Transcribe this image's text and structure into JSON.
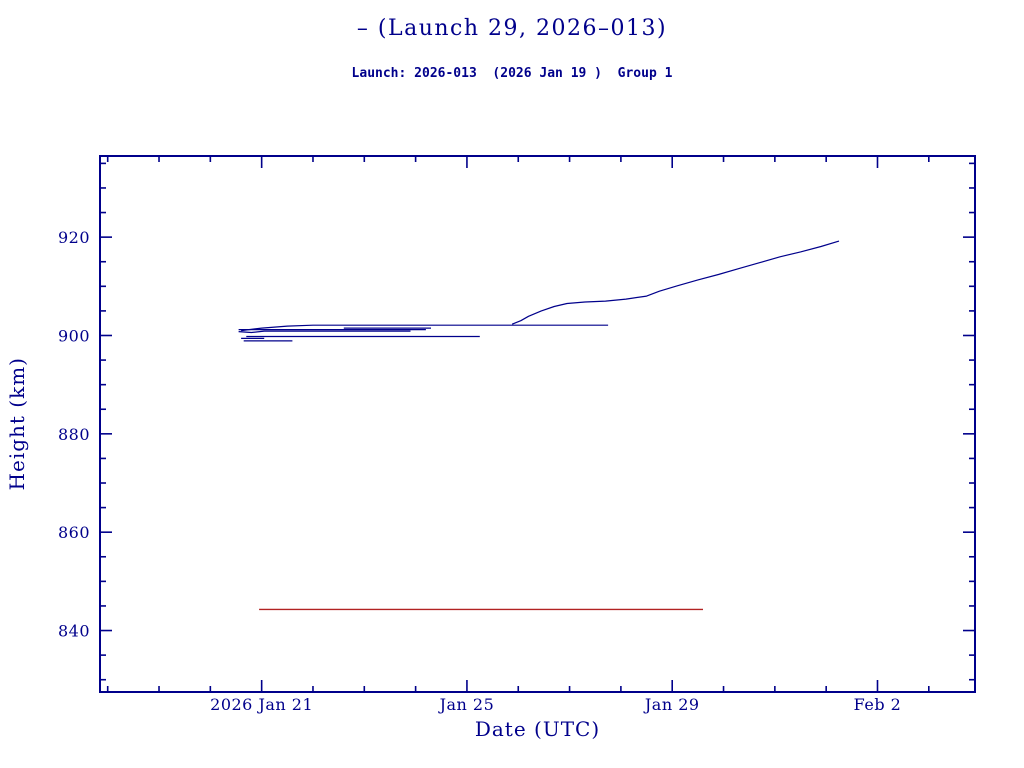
{
  "colors": {
    "axis": "#00008b",
    "text": "#00008b",
    "series_blue": "#00008b",
    "series_red": "#b22222",
    "background": "#ffffff"
  },
  "chart_data": {
    "type": "line",
    "title": "– (Launch 29, 2026–013)",
    "subtitle": "Launch: 2026-013  (2026 Jan 19 )  Group 1",
    "xlabel": "Date (UTC)",
    "ylabel": "Height (km)",
    "x_unit": "day of 2026 (Jan 21 = 21, Feb 2 = 33)",
    "xlim": [
      17.85,
      34.9
    ],
    "ylim": [
      827.5,
      936.5
    ],
    "grid": false,
    "legend": "none",
    "x_major_ticks": [
      {
        "value": 21,
        "label": "2026 Jan 21"
      },
      {
        "value": 25,
        "label": "Jan 25"
      },
      {
        "value": 29,
        "label": "Jan 29"
      },
      {
        "value": 33,
        "label": "Feb 2"
      }
    ],
    "x_minor_step": 1,
    "y_major_ticks": [
      {
        "value": 840,
        "label": "840"
      },
      {
        "value": 860,
        "label": "860"
      },
      {
        "value": 880,
        "label": "880"
      },
      {
        "value": 900,
        "label": "900"
      },
      {
        "value": 920,
        "label": "920"
      }
    ],
    "y_minor_step": 5,
    "series": [
      {
        "name": "object-trace-1",
        "color": "#00008b",
        "width": 1.2,
        "points": [
          [
            20.55,
            901.2
          ],
          [
            24.2,
            901.2
          ]
        ]
      },
      {
        "name": "object-trace-2",
        "color": "#00008b",
        "width": 1.2,
        "points": [
          [
            20.55,
            900.8
          ],
          [
            20.8,
            900.6
          ],
          [
            21.05,
            900.9
          ],
          [
            23.9,
            900.9
          ]
        ]
      },
      {
        "name": "object-trace-3",
        "color": "#00008b",
        "width": 1.2,
        "points": [
          [
            20.6,
            899.4
          ],
          [
            21.05,
            899.4
          ]
        ]
      },
      {
        "name": "object-trace-4",
        "color": "#00008b",
        "width": 1.2,
        "points": [
          [
            20.65,
            898.9
          ],
          [
            21.6,
            898.9
          ]
        ]
      },
      {
        "name": "object-trace-5",
        "color": "#00008b",
        "width": 1.2,
        "points": [
          [
            20.7,
            899.8
          ],
          [
            25.25,
            899.8
          ]
        ]
      },
      {
        "name": "object-trace-6",
        "color": "#00008b",
        "width": 1.2,
        "points": [
          [
            20.6,
            901.0
          ],
          [
            21.0,
            901.5
          ],
          [
            21.5,
            901.9
          ],
          [
            22.0,
            902.1
          ],
          [
            27.75,
            902.1
          ]
        ]
      },
      {
        "name": "object-trace-7",
        "color": "#00008b",
        "width": 1.2,
        "points": [
          [
            22.6,
            901.5
          ],
          [
            24.3,
            901.5
          ]
        ]
      },
      {
        "name": "object-trace-raising",
        "color": "#00008b",
        "width": 1.2,
        "points": [
          [
            25.88,
            902.3
          ],
          [
            26.05,
            903.0
          ],
          [
            26.2,
            903.9
          ],
          [
            26.45,
            905.0
          ],
          [
            26.7,
            905.9
          ],
          [
            26.95,
            906.5
          ],
          [
            27.3,
            906.8
          ],
          [
            27.7,
            907.0
          ],
          [
            28.1,
            907.4
          ],
          [
            28.5,
            908.0
          ],
          [
            28.75,
            909.0
          ],
          [
            29.1,
            910.1
          ],
          [
            29.5,
            911.3
          ],
          [
            29.9,
            912.4
          ],
          [
            30.3,
            913.6
          ],
          [
            30.7,
            914.8
          ],
          [
            31.1,
            916.0
          ],
          [
            31.5,
            917.0
          ],
          [
            31.9,
            918.1
          ],
          [
            32.25,
            919.2
          ]
        ]
      },
      {
        "name": "reference-line-red",
        "color": "#b22222",
        "width": 1.4,
        "points": [
          [
            20.95,
            844.3
          ],
          [
            29.6,
            844.3
          ]
        ]
      }
    ]
  }
}
